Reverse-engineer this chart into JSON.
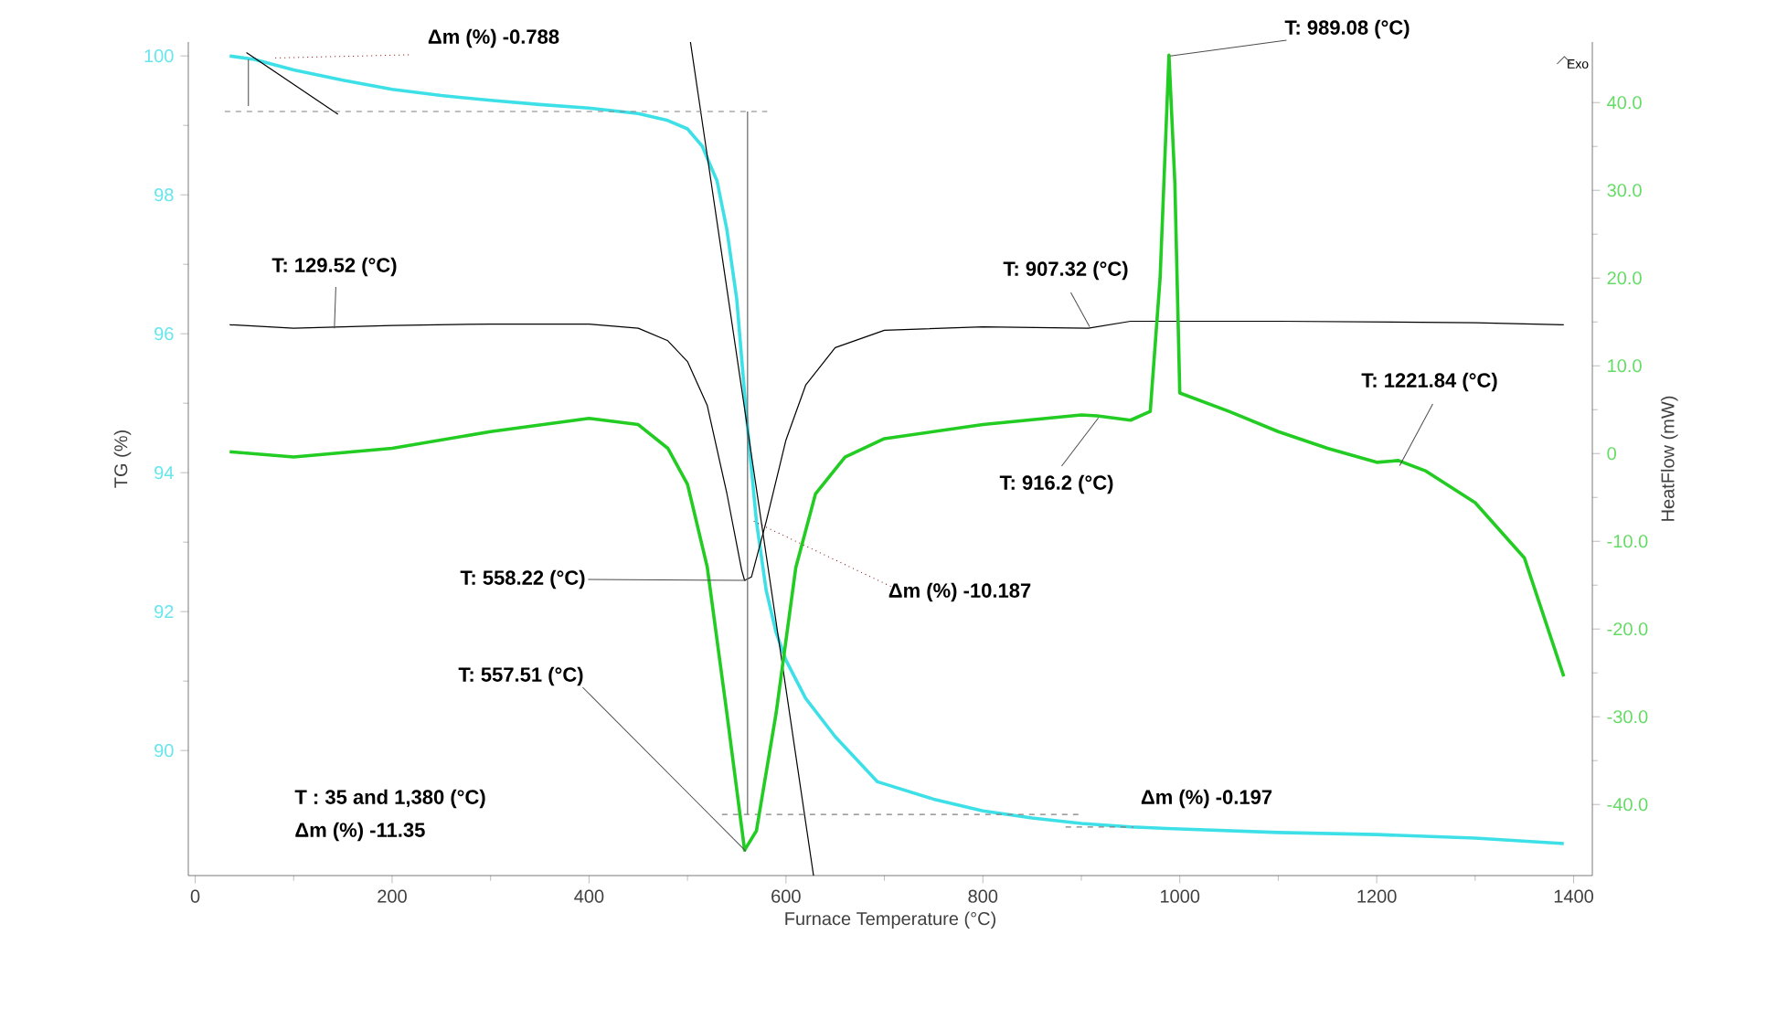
{
  "chart_data": {
    "type": "line",
    "xlabel": "Furnace Temperature (°C)",
    "ylabel": "TG (%)",
    "y2label": "HeatFlow  (mW)",
    "xlim": [
      -7,
      1419
    ],
    "ylim": [
      88.2,
      100.2
    ],
    "y2lim": [
      -48.1,
      46.9
    ],
    "xticks": [
      0,
      200,
      400,
      600,
      800,
      1000,
      1200,
      1400
    ],
    "yticks": [
      90,
      92,
      94,
      96,
      98,
      100
    ],
    "y2ticks": [
      {
        "value": -40,
        "label": "-40.0"
      },
      {
        "value": -30,
        "label": "-30.0"
      },
      {
        "value": -20,
        "label": "-20.0"
      },
      {
        "value": -10,
        "label": "-10.0"
      },
      {
        "value": 0,
        "label": "0"
      },
      {
        "value": 10,
        "label": "10.0"
      },
      {
        "value": 20,
        "label": "20.0"
      },
      {
        "value": 30,
        "label": "30.0"
      },
      {
        "value": 40,
        "label": "40.0"
      }
    ],
    "grid": false,
    "series": [
      {
        "color": "#3ee0e8",
        "x": [
          35,
          60,
          100,
          150,
          200,
          250,
          300,
          350,
          400,
          450,
          480,
          500,
          515,
          530,
          540,
          550,
          560,
          570,
          580,
          590,
          600,
          620,
          650,
          693,
          750,
          800,
          850,
          900,
          950,
          1000,
          1100,
          1200,
          1300,
          1390
        ],
        "values": [
          100.0,
          99.95,
          99.8,
          99.65,
          99.52,
          99.43,
          99.36,
          99.3,
          99.25,
          99.17,
          99.07,
          98.95,
          98.7,
          98.2,
          97.5,
          96.5,
          94.8,
          93.3,
          92.3,
          91.7,
          91.3,
          90.75,
          90.2,
          89.55,
          89.3,
          89.13,
          89.03,
          88.95,
          88.9,
          88.87,
          88.82,
          88.79,
          88.74,
          88.66
        ]
      },
      {
        "color": "#000000",
        "x": [
          35,
          100,
          200,
          300,
          400,
          450,
          480,
          500,
          520,
          540,
          555,
          558,
          565,
          580,
          600,
          620,
          650,
          700,
          800,
          907,
          950,
          1100,
          1300,
          1390
        ],
        "values": [
          96.13,
          96.08,
          96.12,
          96.14,
          96.14,
          96.08,
          95.9,
          95.6,
          94.97,
          93.7,
          92.6,
          92.45,
          92.5,
          93.3,
          94.47,
          95.26,
          95.8,
          96.05,
          96.1,
          96.08,
          96.18,
          96.18,
          96.16,
          96.13
        ]
      },
      {
        "color": "#22cc22",
        "axis": "y2",
        "x": [
          35,
          100,
          200,
          300,
          400,
          450,
          480,
          500,
          520,
          540,
          558,
          570,
          590,
          610,
          630,
          660,
          700,
          800,
          900,
          916,
          950,
          970,
          980,
          989,
          995,
          1000,
          1050,
          1100,
          1150,
          1200,
          1222,
          1250,
          1300,
          1350,
          1390
        ],
        "values": [
          0.2,
          -0.4,
          0.6,
          2.5,
          4.0,
          3.3,
          0.6,
          -3.5,
          -12.9,
          -29.6,
          -45.2,
          -43,
          -29.6,
          -13,
          -4.6,
          -0.4,
          1.7,
          3.3,
          4.4,
          4.3,
          3.8,
          4.8,
          20,
          45.4,
          30.8,
          6.9,
          4.8,
          2.5,
          0.6,
          -1.0,
          -0.8,
          -2,
          -5.6,
          -11.9,
          -25.4
        ]
      },
      {
        "type": "line",
        "color": "#000000",
        "x": [
          503,
          628
        ],
        "values": [
          100.2,
          88.2
        ]
      },
      {
        "type": "line",
        "color": "#000000",
        "x": [
          52,
          145
        ],
        "values": [
          100.05,
          99.16
        ]
      },
      {
        "type": "line",
        "color": "#808080",
        "line_style": "dashed",
        "x": [
          30,
          581
        ],
        "values": [
          99.2,
          99.2
        ]
      },
      {
        "type": "line",
        "color": "#808080",
        "line_style": "dashed",
        "x": [
          535,
          897
        ],
        "values": [
          89.08,
          89.08
        ]
      },
      {
        "type": "line",
        "color": "#808080",
        "line_style": "dashed",
        "x": [
          884,
          953
        ],
        "values": [
          88.9,
          88.9
        ]
      },
      {
        "type": "line",
        "color": "#666666",
        "x": [
          561,
          561
        ],
        "values": [
          99.2,
          89.08
        ]
      },
      {
        "type": "line",
        "color": "#666666",
        "x": [
          54,
          54
        ],
        "values": [
          99.95,
          99.28
        ]
      }
    ],
    "annotations": [
      {
        "text": "Δm (%) -0.788",
        "x": 80,
        "y": 99.97
      },
      {
        "text": "T: 989.08 (°C)",
        "x": 989,
        "y": 100.0
      },
      "Exo",
      {
        "text": "T: 129.52 (°C)",
        "x": 140,
        "y": 96.08
      },
      {
        "text": "T: 907.32 (°C)",
        "x": 907,
        "y": 96.1
      },
      {
        "text": "T: 1221.84 (°C)",
        "x": 1222,
        "y": 94.1
      },
      {
        "text": "T: 916.2 (°C)",
        "x": 916,
        "y": 94.79
      },
      {
        "text": "T: 558.22 (°C)",
        "x": 558,
        "y": 92.45
      },
      {
        "text": "Δm (%) -10.187",
        "x": 566,
        "y": 93.3
      },
      {
        "text": "T: 557.51 (°C)",
        "x": 558,
        "y": 88.55
      },
      "T : 35 and 1,380 (°C)",
      "Δm (%) -11.35",
      "Δm (%) -0.197"
    ]
  }
}
